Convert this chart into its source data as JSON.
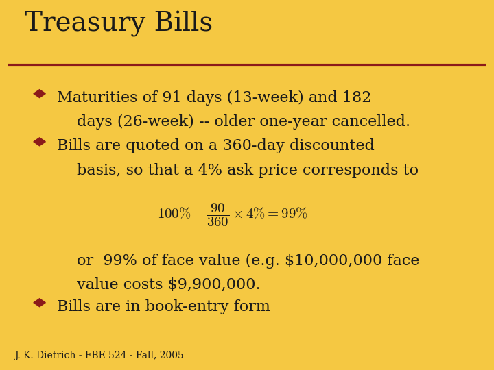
{
  "background_color": "#F5C842",
  "title": "Treasury Bills",
  "title_fontsize": 28,
  "title_color": "#1a1a1a",
  "title_font": "serif",
  "line_color": "#8B1A1A",
  "bullet_color": "#8B1A1A",
  "text_color": "#1a1a1a",
  "body_fontsize": 16,
  "body_font": "serif",
  "footer_text": "J. K. Dietrich - FBE 524 - Fall, 2005",
  "footer_fontsize": 10,
  "bullet1_line1": "Maturities of 91 days (13-week) and 182",
  "bullet1_line2": "days (26-week) -- older one-year cancelled.",
  "bullet2_line1": "Bills are quoted on a 360-day discounted",
  "bullet2_line2": "basis, so that a 4% ask price corresponds to",
  "continuation_line1": "or  99% of face value (e.g. $10,000,000 face",
  "continuation_line2": "value costs $9,900,000.",
  "bullet3_line1": "Bills are in book-entry form"
}
